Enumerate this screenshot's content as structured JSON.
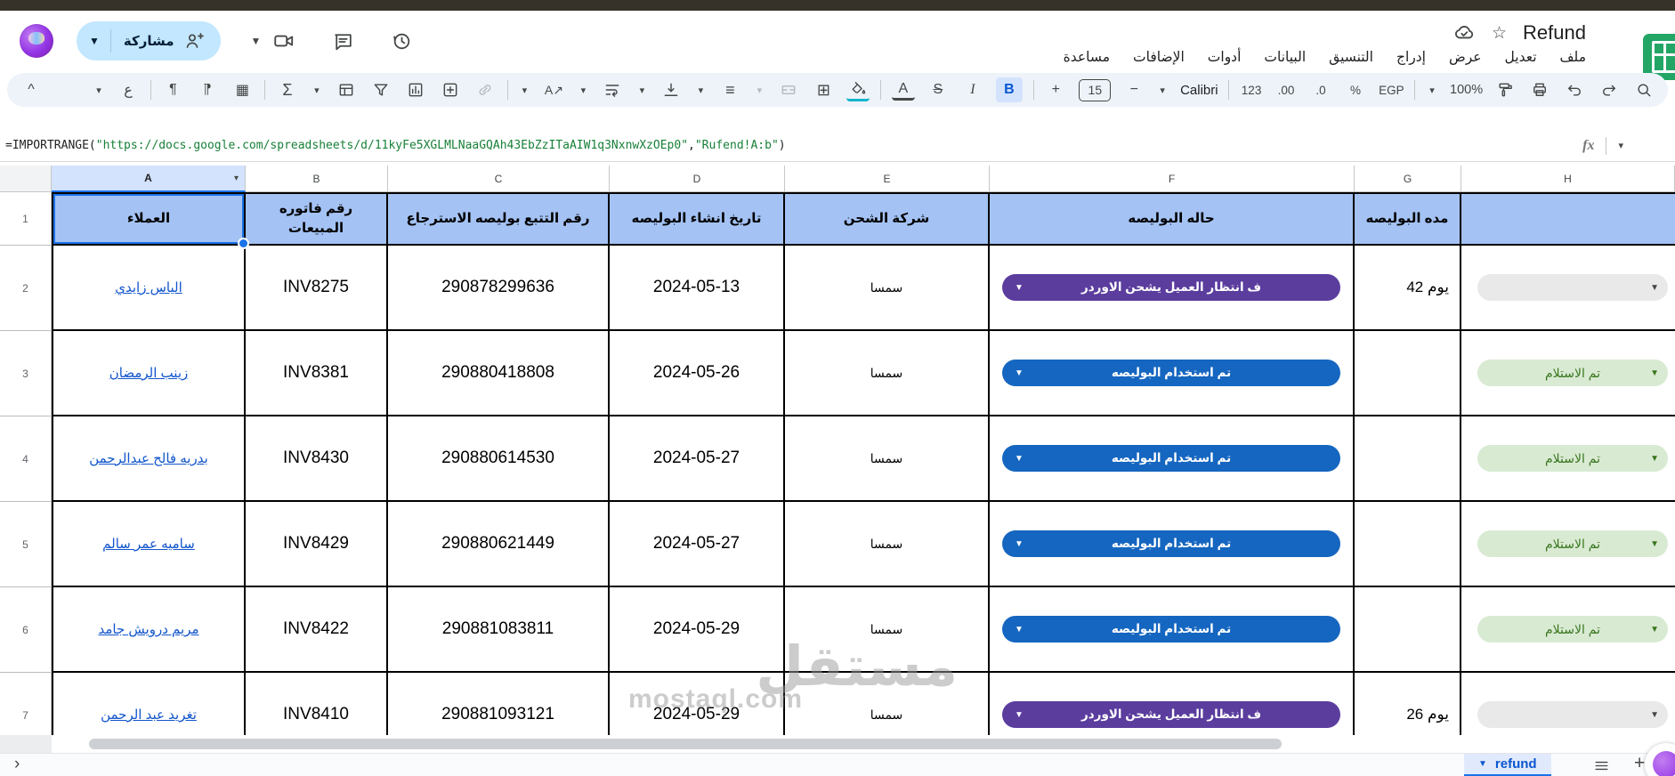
{
  "topbar": {
    "share_label": "مشاركة",
    "title": "Refund",
    "menus": [
      "ملف",
      "تعديل",
      "عرض",
      "إدراج",
      "التنسيق",
      "البيانات",
      "أدوات",
      "الإضافات",
      "مساعدة"
    ]
  },
  "toolbar": {
    "glyphs": {
      "collapse": "^",
      "input_tools": "ع",
      "para_ltr": "¶",
      "para_rtl": "¶",
      "table": "▦",
      "functions": "Σ",
      "borders": "⊞",
      "text_color": "A",
      "strikethrough": "S",
      "italic": "I",
      "bold": "B",
      "plus": "+",
      "minus": "−",
      "align": "≡",
      "rotate": "A↗"
    },
    "font_name": "Calibri",
    "font_size": "15",
    "format_number": "123",
    "decimal_increase": ".00",
    "decimal_decrease": ".0",
    "percent": "%",
    "currency": "EGP",
    "zoom": "100%"
  },
  "formula_bar": {
    "fx_label": "fx",
    "segments": [
      {
        "text": "=IMPORTRANGE(",
        "color": "plain"
      },
      {
        "text": "\"https://docs.google.com/spreadsheets/d/11kyFe5XGLMLNaaGQAh43EbZzITaAIW1q3NxnwXzOEp0\"",
        "color": "green"
      },
      {
        "text": ",",
        "color": "plain"
      },
      {
        "text": "\"Rufend!A:b\"",
        "color": "green"
      },
      {
        "text": ")",
        "color": "plain"
      }
    ]
  },
  "grid": {
    "column_letters": [
      "A",
      "B",
      "C",
      "D",
      "E",
      "F",
      "G",
      "H"
    ],
    "selected_column": "A",
    "header_row_num": "1",
    "headers": {
      "a": "العملاء",
      "b": "رقم فاتوره المبيعات",
      "c": "رقم التتبع بوليصه الاسترجاع",
      "d": "تاريخ انشاء البوليصه",
      "e": "شركة الشحن",
      "f": "حاله البوليصه",
      "g": "مده البوليصه",
      "h": ""
    },
    "rows": [
      {
        "num": "2",
        "customer": "الياس زايدي",
        "invoice": "INV8275",
        "tracking": "290878299636",
        "date": "2024-05-13",
        "carrier": "سمسا",
        "status": {
          "label": "ف انتظار العميل يشحن الاوردر",
          "type": "purple"
        },
        "duration": "يوم 42",
        "receipt": {
          "label": "",
          "type": "grey"
        }
      },
      {
        "num": "3",
        "customer": "زينب الرمضان",
        "invoice": "INV8381",
        "tracking": "290880418808",
        "date": "2024-05-26",
        "carrier": "سمسا",
        "status": {
          "label": "تم استخدام البوليصه",
          "type": "blue"
        },
        "duration": "",
        "receipt": {
          "label": "تم الاستلام",
          "type": "green"
        }
      },
      {
        "num": "4",
        "customer": "بدريه فالح عبدالرحمن",
        "invoice": "INV8430",
        "tracking": "290880614530",
        "date": "2024-05-27",
        "carrier": "سمسا",
        "status": {
          "label": "تم استخدام البوليصه",
          "type": "blue"
        },
        "duration": "",
        "receipt": {
          "label": "تم الاستلام",
          "type": "green"
        }
      },
      {
        "num": "5",
        "customer": "ساميه عمر سالم",
        "invoice": "INV8429",
        "tracking": "290880621449",
        "date": "2024-05-27",
        "carrier": "سمسا",
        "status": {
          "label": "تم استخدام البوليصه",
          "type": "blue"
        },
        "duration": "",
        "receipt": {
          "label": "تم الاستلام",
          "type": "green"
        }
      },
      {
        "num": "6",
        "customer": "مريم درويش جامد",
        "invoice": "INV8422",
        "tracking": "290881083811",
        "date": "2024-05-29",
        "carrier": "سمسا",
        "status": {
          "label": "تم استخدام البوليصه",
          "type": "blue"
        },
        "duration": "",
        "receipt": {
          "label": "تم الاستلام",
          "type": "green"
        }
      },
      {
        "num": "7",
        "customer": "تغريد عبد الرحمن",
        "invoice": "INV8410",
        "tracking": "290881093121",
        "date": "2024-05-29",
        "carrier": "سمسا",
        "status": {
          "label": "ف انتظار العميل يشحن الاوردر",
          "type": "purple"
        },
        "duration": "يوم 26",
        "receipt": {
          "label": "",
          "type": "grey"
        }
      }
    ]
  },
  "watermark": {
    "arabic": "مستقل",
    "latin": "mostaql.com"
  },
  "sheet_tabs": {
    "active_label": "refund"
  },
  "colors": {
    "accent": "#1a73e8",
    "header_bg": "#a4c2f4",
    "selected_letter_bg": "#d3e3fd",
    "chip_purple": "#5b3d9e",
    "chip_blue": "#1566c0",
    "chip_green_bg": "#d9ead3",
    "chip_green_text": "#38761d",
    "chip_grey_bg": "#e9e9e9",
    "link": "#1155cc",
    "formula_string_green": "#188038",
    "share_pill": "#c2e7ff",
    "sheets_logo_green": "#23a566",
    "title_strip": "#36322a"
  }
}
